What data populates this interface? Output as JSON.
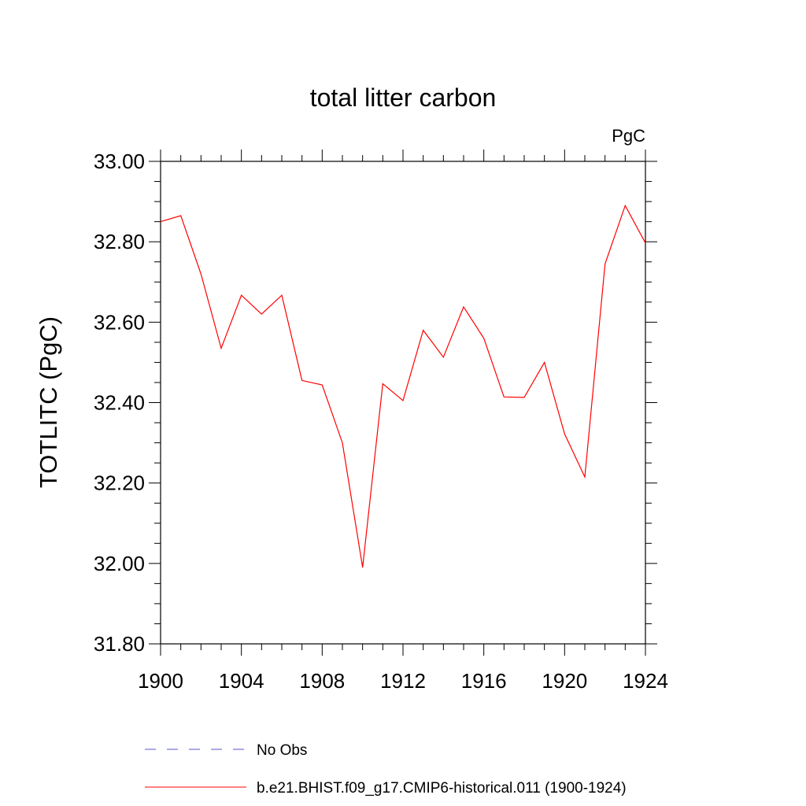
{
  "chart_data": {
    "type": "line",
    "title": "total litter carbon",
    "units_label": "PgC",
    "ylabel": "TOTLITC  (PgC)",
    "xlabel": "",
    "xlim": [
      1900,
      1924
    ],
    "ylim": [
      31.8,
      33.0
    ],
    "x_ticks": [
      1900,
      1904,
      1908,
      1912,
      1916,
      1920,
      1924
    ],
    "x_tick_labels": [
      "1900",
      "1904",
      "1908",
      "1912",
      "1916",
      "1920",
      "1924"
    ],
    "y_ticks": [
      31.8,
      32.0,
      32.2,
      32.4,
      32.6,
      32.8,
      33.0
    ],
    "y_tick_labels": [
      "31.80",
      "32.00",
      "32.20",
      "32.40",
      "32.60",
      "32.80",
      "33.00"
    ],
    "grid": false,
    "legend_position": "bottom",
    "series": [
      {
        "name": "b.e21.BHIST.f09_g17.CMIP6-historical.011 (1900-1924)",
        "color": "#ff0000",
        "style": "solid",
        "x": [
          1900,
          1901,
          1902,
          1903,
          1904,
          1905,
          1906,
          1907,
          1908,
          1909,
          1910,
          1911,
          1912,
          1913,
          1914,
          1915,
          1916,
          1917,
          1918,
          1919,
          1920,
          1921,
          1922,
          1923,
          1924
        ],
        "values": [
          32.85,
          32.865,
          32.72,
          32.535,
          32.667,
          32.62,
          32.667,
          32.455,
          32.444,
          32.3,
          31.99,
          32.447,
          32.405,
          32.58,
          32.513,
          32.638,
          32.56,
          32.414,
          32.413,
          32.5,
          32.322,
          32.215,
          32.745,
          32.89,
          32.797
        ]
      }
    ],
    "legend": [
      {
        "label": "No Obs",
        "color": "#5555cc",
        "style": "dashed"
      },
      {
        "label": "b.e21.BHIST.f09_g17.CMIP6-historical.011 (1900-1924)",
        "color": "#ff0000",
        "style": "solid"
      }
    ]
  }
}
